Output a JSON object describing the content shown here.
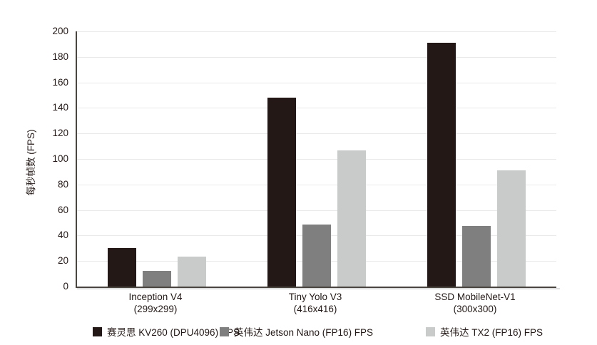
{
  "chart_data": {
    "type": "bar",
    "title": "",
    "xlabel": "",
    "ylabel": "每秒帧数 (FPS)",
    "ylim": [
      0,
      200
    ],
    "ytick_step": 20,
    "yticks": [
      0,
      20,
      40,
      60,
      80,
      100,
      120,
      140,
      160,
      180,
      200
    ],
    "grid": "horizontal",
    "legend_position": "bottom",
    "categories": [
      {
        "label": "Inception V4",
        "sublabel": "(299x299)"
      },
      {
        "label": "Tiny Yolo V3",
        "sublabel": "(416x416)"
      },
      {
        "label": "SSD MobileNet-V1",
        "sublabel": "(300x300)"
      }
    ],
    "series": [
      {
        "name": "赛灵思 KV260 (DPU4096) FPS",
        "color": "#231815",
        "values": [
          30,
          148,
          191
        ]
      },
      {
        "name": "英伟达 Jetson Nano (FP16) FPS",
        "color": "#7f7f7f",
        "values": [
          12.5,
          48.5,
          47.5
        ]
      },
      {
        "name": "英伟达 TX2 (FP16) FPS",
        "color": "#c9caca",
        "values": [
          23.5,
          106.5,
          91
        ]
      }
    ]
  },
  "colors": {
    "background": "#ffffff",
    "axis": "#4a463f",
    "axis_shadow": "#dcdcdc",
    "grid": "#e9e9e9",
    "text": "#231815"
  }
}
